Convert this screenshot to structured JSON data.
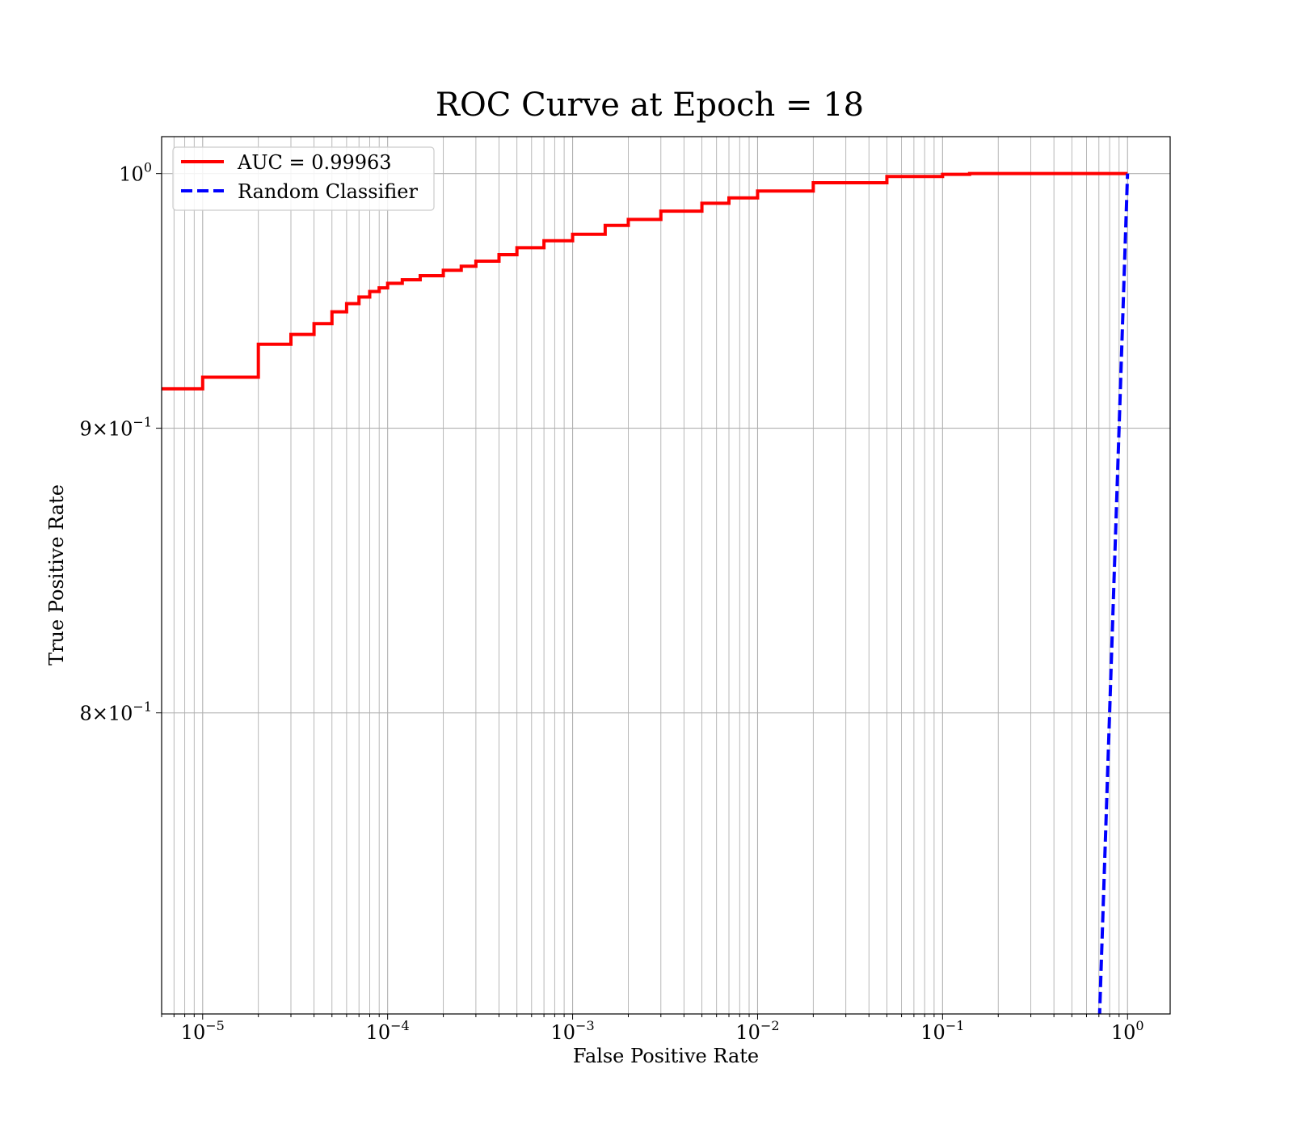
{
  "chart_data": {
    "type": "line",
    "title": "ROC Curve at Epoch = 18",
    "xlabel": "False Positive Rate",
    "ylabel": "True Positive Rate",
    "xscale": "log",
    "yscale": "log",
    "xlim": [
      6e-06,
      1.7
    ],
    "ylim": [
      0.7063,
      1.0154
    ],
    "grid": true,
    "grid_which": "both",
    "legend_position": "top-left",
    "x_tick_labels": [
      {
        "value": 1e-05,
        "base": "10",
        "exp": "−5"
      },
      {
        "value": 0.0001,
        "base": "10",
        "exp": "−4"
      },
      {
        "value": 0.001,
        "base": "10",
        "exp": "−3"
      },
      {
        "value": 0.01,
        "base": "10",
        "exp": "−2"
      },
      {
        "value": 0.1,
        "base": "10",
        "exp": "−1"
      },
      {
        "value": 1,
        "base": "10",
        "exp": "0"
      }
    ],
    "y_tick_labels": [
      {
        "value": 1.0,
        "mant": "",
        "base": "10",
        "exp": "0"
      },
      {
        "value": 0.9,
        "mant": "9",
        "base": "10",
        "exp": "−1"
      },
      {
        "value": 0.8,
        "mant": "8",
        "base": "10",
        "exp": "−1"
      }
    ],
    "series": [
      {
        "name": "AUC = 0.99963",
        "color": "#ff0000",
        "style": "solid",
        "step": true,
        "x": [
          6e-06,
          1e-05,
          2e-05,
          3e-05,
          4e-05,
          5e-05,
          6e-05,
          7e-05,
          8e-05,
          9e-05,
          0.0001,
          0.00012,
          0.00015,
          0.0002,
          0.00025,
          0.0003,
          0.0004,
          0.0005,
          0.0007,
          0.001,
          0.0015,
          0.002,
          0.003,
          0.005,
          0.007,
          0.01,
          0.02,
          0.05,
          0.1,
          0.14,
          1.0
        ],
        "y": [
          0.9148,
          0.9192,
          0.9318,
          0.9356,
          0.9398,
          0.9444,
          0.9476,
          0.9502,
          0.9524,
          0.9538,
          0.9556,
          0.957,
          0.9586,
          0.9608,
          0.9624,
          0.9644,
          0.967,
          0.9698,
          0.9726,
          0.9752,
          0.9788,
          0.9812,
          0.9846,
          0.9878,
          0.99,
          0.9928,
          0.9962,
          0.9988,
          0.9997,
          1.0,
          1.0
        ]
      },
      {
        "name": "Random Classifier",
        "color": "#0000ff",
        "style": "dashed",
        "step": false,
        "x": [
          0.7,
          0.8,
          0.9,
          1.0
        ],
        "y": [
          0.7,
          0.8,
          0.9,
          1.0
        ]
      }
    ]
  }
}
